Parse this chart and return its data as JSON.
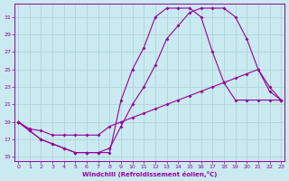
{
  "xlabel": "Windchill (Refroidissement éolien,°C)",
  "background_color": "#c8eaf0",
  "grid_color": "#b0d4d8",
  "line_color": "#990099",
  "x_ticks": [
    0,
    1,
    2,
    3,
    4,
    5,
    6,
    7,
    8,
    9,
    10,
    11,
    12,
    13,
    14,
    15,
    16,
    17,
    18,
    19,
    20,
    21,
    22,
    23
  ],
  "y_ticks": [
    15,
    17,
    19,
    21,
    23,
    25,
    27,
    29,
    31
  ],
  "xlim": [
    -0.3,
    23.3
  ],
  "ylim": [
    14.5,
    32.5
  ],
  "line1_x": [
    0,
    1,
    2,
    3,
    4,
    5,
    6,
    7,
    8,
    9,
    10,
    11,
    12,
    13,
    14,
    15,
    16,
    17,
    18,
    19,
    20,
    21,
    22,
    23
  ],
  "line1_y": [
    19.0,
    18.0,
    17.0,
    16.5,
    16.0,
    15.5,
    15.5,
    15.5,
    15.5,
    21.5,
    25.0,
    27.5,
    31.0,
    32.0,
    32.0,
    32.0,
    31.0,
    27.0,
    23.5,
    21.5,
    21.5,
    21.5,
    21.5,
    21.5
  ],
  "line2_x": [
    0,
    1,
    2,
    3,
    4,
    5,
    6,
    7,
    8,
    9,
    10,
    11,
    12,
    13,
    14,
    15,
    16,
    17,
    18,
    19,
    20,
    21,
    22,
    23
  ],
  "line2_y": [
    19.0,
    18.0,
    17.0,
    16.5,
    16.0,
    15.5,
    15.5,
    15.5,
    16.0,
    18.5,
    21.0,
    23.0,
    25.5,
    28.5,
    30.0,
    31.5,
    32.0,
    32.0,
    32.0,
    31.0,
    28.5,
    25.0,
    22.5,
    21.5
  ],
  "line3_x": [
    0,
    1,
    2,
    3,
    4,
    5,
    6,
    7,
    8,
    9,
    10,
    11,
    12,
    13,
    14,
    15,
    16,
    17,
    18,
    19,
    20,
    21,
    22,
    23
  ],
  "line3_y": [
    19.0,
    18.2,
    18.0,
    17.5,
    17.5,
    17.5,
    17.5,
    17.5,
    18.5,
    19.0,
    19.5,
    20.0,
    20.5,
    21.0,
    21.5,
    22.0,
    22.5,
    23.0,
    23.5,
    24.0,
    24.5,
    25.0,
    23.0,
    21.5
  ]
}
